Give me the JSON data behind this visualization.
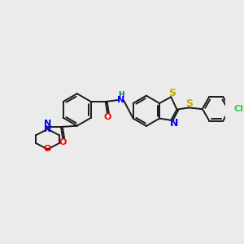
{
  "background_color": "#ebebeb",
  "bond_color": "#1a1a1a",
  "n_color": "#0000ff",
  "o_color": "#ff0000",
  "s_color": "#ccaa00",
  "cl_color": "#33cc33",
  "nh_color": "#007777",
  "figsize": [
    3.0,
    3.0
  ],
  "dpi": 100,
  "xlim": [
    0,
    10
  ],
  "ylim": [
    0,
    10
  ]
}
